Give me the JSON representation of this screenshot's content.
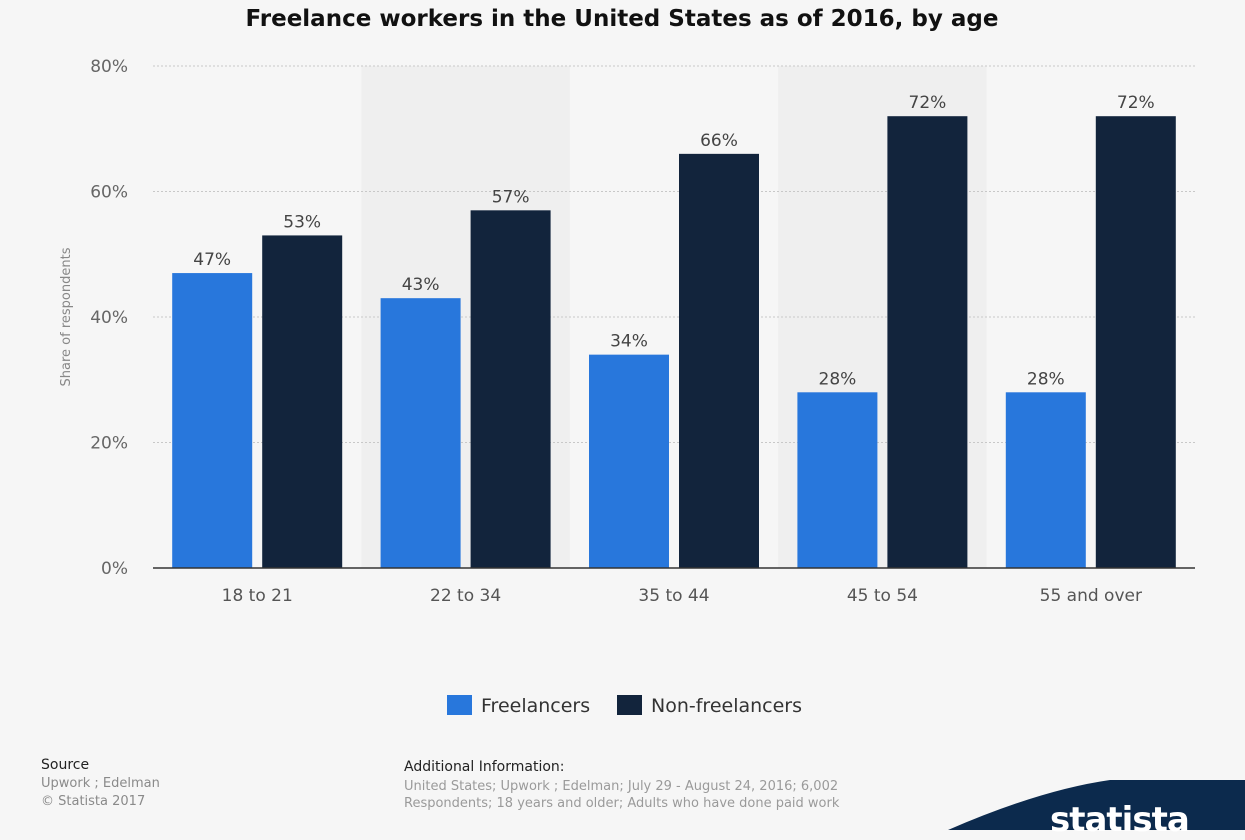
{
  "chart_data": {
    "type": "bar",
    "title": "Freelance workers in the United States as of 2016, by age",
    "xlabel": "",
    "ylabel": "Share of respondents",
    "categories": [
      "18 to 21",
      "22 to 34",
      "35 to 44",
      "45 to 54",
      "55 and over"
    ],
    "series": [
      {
        "name": "Freelancers",
        "color": "#2877dc",
        "values": [
          47,
          43,
          34,
          28,
          28
        ]
      },
      {
        "name": "Non-freelancers",
        "color": "#12243c",
        "values": [
          53,
          57,
          66,
          72,
          72
        ]
      }
    ],
    "ylim": [
      0,
      80
    ],
    "yticks": [
      0,
      20,
      40,
      60,
      80
    ],
    "ytick_labels": [
      "0%",
      "20%",
      "40%",
      "60%",
      "80%"
    ],
    "value_labels": [
      [
        "47%",
        "43%",
        "34%",
        "28%",
        "28%"
      ],
      [
        "53%",
        "57%",
        "66%",
        "72%",
        "72%"
      ]
    ],
    "grid": true,
    "legend": "bottom-center"
  },
  "footer": {
    "source_title": "Source",
    "source_line1": "Upwork ; Edelman",
    "source_line2": "© Statista 2017",
    "additional_title": "Additional Information:",
    "additional_text": "United States; Upwork ; Edelman; July 29 - August 24, 2016; 6,002 Respondents; 18 years and older; Adults who have done paid work"
  },
  "brand": {
    "name": "statista",
    "color": "#0c2a4d"
  }
}
